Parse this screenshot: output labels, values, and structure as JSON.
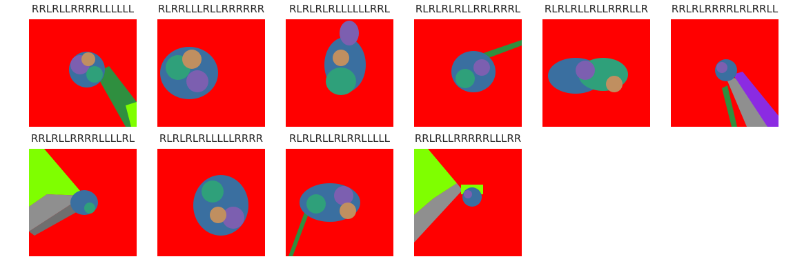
{
  "colors": {
    "background": "#ff0000",
    "page": "#ffffff"
  },
  "panels": [
    {
      "title": "RRLRLLRRRRLLLLLL",
      "motif": "blob-with-diagonal-stripe-down-right"
    },
    {
      "title": "RLRRLLLRLLRRRRRR",
      "motif": "blob"
    },
    {
      "title": "RLRLRLRLLLLLLRRL",
      "motif": "vertical-blob"
    },
    {
      "title": "RLRLRLRLLRRLRRRL",
      "motif": "blob-with-stripe-up-right"
    },
    {
      "title": "RLRLRLLRLLRRRLLR",
      "motif": "wide-blob"
    },
    {
      "title": "RRLRLRRRRLRLRRLL",
      "motif": "small-blob-with-purple-diagonal"
    },
    {
      "title": "RRLRLLRRRRLLLLRL",
      "motif": "large-green-gray-triangle-left"
    },
    {
      "title": "RLRLRLRLLLLLRRRR",
      "motif": "blob"
    },
    {
      "title": "RLRLRLLRLRRLLLLL",
      "motif": "blob-with-stripe-down-left"
    },
    {
      "title": "RRLRLLRRRRRLLLRR",
      "motif": "large-green-gray-triangle-left"
    }
  ]
}
